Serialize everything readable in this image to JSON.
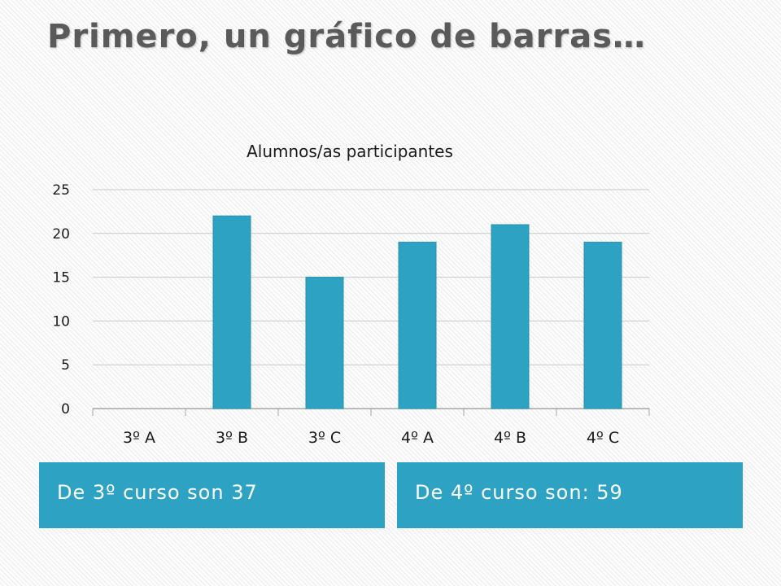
{
  "slide": {
    "title": "Primero, un gráfico de barras…"
  },
  "boxes": {
    "left_text": "De 3º curso son 37",
    "right_text": "De 4º curso son: 59"
  },
  "colors": {
    "bar": "#2ea2c2",
    "box": "#2ea2c2",
    "grid": "#c8c8c8",
    "title": "#5a5a5a"
  },
  "chart_data": {
    "type": "bar",
    "title": "Alumnos/as  participantes",
    "categories": [
      "3º A",
      "3º B",
      "3º C",
      "4º A",
      "4º B",
      "4º C"
    ],
    "values": [
      0,
      22,
      15,
      19,
      21,
      19
    ],
    "ylim": [
      0,
      25
    ],
    "yticks": [
      0,
      5,
      10,
      15,
      20,
      25
    ],
    "grid": true,
    "legend": "none"
  }
}
